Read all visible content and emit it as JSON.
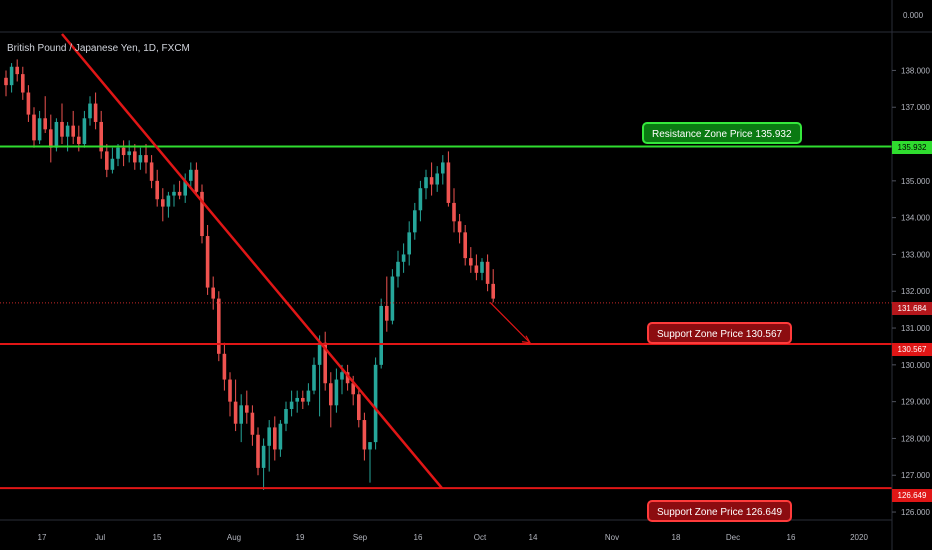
{
  "header": {
    "title": "British Pound / Japanese Yen, 1D, FXCM"
  },
  "price_axis": {
    "top_label": "0.000",
    "ticks": [
      "138.000",
      "137.000",
      "136.000",
      "135.000",
      "134.000",
      "133.000",
      "132.000",
      "131.000",
      "130.000",
      "129.000",
      "128.000",
      "127.000",
      "126.000"
    ]
  },
  "time_axis": {
    "ticks": [
      "17",
      "Jul",
      "15",
      "Aug",
      "19",
      "Sep",
      "16",
      "Oct",
      "14",
      "Nov",
      "18",
      "Dec",
      "16",
      "2020"
    ]
  },
  "levels": {
    "resistance": {
      "price": 135.932,
      "label": "Resistance Zone Price 135.932",
      "tag": "135.932",
      "color": "#2fdc2f"
    },
    "support1": {
      "price": 130.567,
      "label": "Support Zone Price 130.567",
      "tag": "130.567",
      "color": "#e01616"
    },
    "support2": {
      "price": 126.649,
      "label": "Support Zone Price 126.649",
      "tag": "126.649",
      "color": "#e01616"
    },
    "current": {
      "price": 131.684,
      "tag": "131.684"
    }
  },
  "colors": {
    "up": "#26a69a",
    "down": "#ef5350",
    "trendline": "#e01616",
    "background": "#000000"
  },
  "chart_data": {
    "type": "candlestick",
    "symbol": "GBPJPY",
    "ylim": [
      126,
      138.5
    ],
    "candles": [
      [
        137.8,
        138.0,
        137.3,
        137.6
      ],
      [
        137.6,
        138.2,
        137.4,
        138.1
      ],
      [
        138.1,
        138.3,
        137.7,
        137.9
      ],
      [
        137.9,
        138.1,
        137.2,
        137.4
      ],
      [
        137.4,
        137.6,
        136.6,
        136.8
      ],
      [
        136.8,
        137.0,
        135.9,
        136.1
      ],
      [
        136.1,
        136.9,
        136.0,
        136.7
      ],
      [
        136.7,
        137.3,
        136.3,
        136.4
      ],
      [
        136.4,
        136.8,
        135.5,
        135.9
      ],
      [
        135.9,
        136.7,
        135.8,
        136.6
      ],
      [
        136.6,
        137.1,
        136.0,
        136.2
      ],
      [
        136.2,
        136.6,
        135.8,
        136.5
      ],
      [
        136.5,
        136.9,
        136.0,
        136.2
      ],
      [
        136.2,
        136.5,
        135.8,
        136.0
      ],
      [
        136.0,
        136.9,
        135.9,
        136.7
      ],
      [
        136.7,
        137.3,
        136.5,
        137.1
      ],
      [
        137.1,
        137.4,
        136.4,
        136.6
      ],
      [
        136.6,
        136.9,
        135.6,
        135.8
      ],
      [
        135.8,
        136.0,
        135.1,
        135.3
      ],
      [
        135.3,
        135.9,
        135.2,
        135.6
      ],
      [
        135.6,
        136.0,
        135.4,
        135.9
      ],
      [
        135.9,
        136.1,
        135.4,
        135.7
      ],
      [
        135.7,
        136.1,
        135.5,
        135.8
      ],
      [
        135.8,
        136.0,
        135.3,
        135.5
      ],
      [
        135.5,
        135.9,
        135.3,
        135.7
      ],
      [
        135.7,
        136.0,
        135.2,
        135.5
      ],
      [
        135.5,
        135.7,
        134.8,
        135.0
      ],
      [
        135.0,
        135.3,
        134.3,
        134.5
      ],
      [
        134.5,
        134.8,
        133.9,
        134.3
      ],
      [
        134.3,
        134.7,
        134.0,
        134.6
      ],
      [
        134.6,
        134.9,
        134.3,
        134.7
      ],
      [
        134.7,
        135.0,
        134.5,
        134.6
      ],
      [
        134.6,
        135.2,
        134.4,
        135.0
      ],
      [
        135.0,
        135.5,
        134.8,
        135.3
      ],
      [
        135.3,
        135.5,
        134.6,
        134.7
      ],
      [
        134.7,
        134.9,
        133.3,
        133.5
      ],
      [
        133.5,
        133.8,
        131.9,
        132.1
      ],
      [
        132.1,
        132.4,
        131.5,
        131.8
      ],
      [
        131.8,
        132.0,
        130.1,
        130.3
      ],
      [
        130.3,
        130.6,
        129.3,
        129.6
      ],
      [
        129.6,
        129.8,
        128.6,
        129.0
      ],
      [
        129.0,
        129.6,
        128.2,
        128.4
      ],
      [
        128.4,
        129.2,
        127.9,
        128.9
      ],
      [
        128.9,
        129.3,
        128.4,
        128.7
      ],
      [
        128.7,
        128.9,
        127.8,
        128.1
      ],
      [
        128.1,
        128.3,
        127.0,
        127.2
      ],
      [
        127.2,
        128.0,
        126.6,
        127.8
      ],
      [
        127.8,
        128.5,
        127.1,
        128.3
      ],
      [
        128.3,
        128.6,
        127.4,
        127.7
      ],
      [
        127.7,
        128.5,
        127.5,
        128.4
      ],
      [
        128.4,
        129.0,
        128.2,
        128.8
      ],
      [
        128.8,
        129.3,
        128.6,
        129.0
      ],
      [
        129.0,
        129.3,
        128.7,
        129.1
      ],
      [
        129.1,
        129.3,
        128.8,
        129.0
      ],
      [
        129.0,
        129.5,
        128.9,
        129.3
      ],
      [
        129.3,
        130.2,
        129.2,
        130.0
      ],
      [
        130.0,
        130.8,
        128.6,
        130.6
      ],
      [
        130.6,
        130.9,
        129.3,
        129.5
      ],
      [
        129.5,
        129.8,
        128.3,
        128.9
      ],
      [
        128.9,
        129.9,
        128.7,
        129.6
      ],
      [
        129.6,
        130.0,
        129.2,
        129.8
      ],
      [
        129.8,
        130.0,
        129.3,
        129.5
      ],
      [
        129.5,
        129.7,
        128.9,
        129.2
      ],
      [
        129.2,
        129.4,
        128.3,
        128.5
      ],
      [
        128.5,
        128.7,
        127.4,
        127.7
      ],
      [
        127.7,
        127.9,
        126.8,
        127.9
      ],
      [
        127.9,
        130.2,
        127.7,
        130.0
      ],
      [
        130.0,
        131.8,
        129.9,
        131.6
      ],
      [
        131.6,
        132.4,
        130.9,
        131.2
      ],
      [
        131.2,
        132.6,
        131.1,
        132.4
      ],
      [
        132.4,
        133.1,
        132.1,
        132.8
      ],
      [
        132.8,
        133.3,
        132.5,
        133.0
      ],
      [
        133.0,
        133.9,
        132.7,
        133.6
      ],
      [
        133.6,
        134.4,
        133.4,
        134.2
      ],
      [
        134.2,
        135.0,
        133.9,
        134.8
      ],
      [
        134.8,
        135.3,
        134.5,
        135.1
      ],
      [
        135.1,
        135.5,
        134.6,
        134.9
      ],
      [
        134.9,
        135.4,
        134.7,
        135.2
      ],
      [
        135.2,
        135.7,
        134.9,
        135.5
      ],
      [
        135.5,
        135.8,
        134.3,
        134.4
      ],
      [
        134.4,
        134.8,
        133.6,
        133.9
      ],
      [
        133.9,
        134.1,
        133.3,
        133.6
      ],
      [
        133.6,
        133.8,
        132.7,
        132.9
      ],
      [
        132.9,
        133.2,
        132.5,
        132.7
      ],
      [
        132.7,
        133.0,
        132.3,
        132.5
      ],
      [
        132.5,
        132.9,
        132.3,
        132.8
      ],
      [
        132.8,
        133.0,
        132.0,
        132.2
      ],
      [
        132.2,
        132.6,
        131.7,
        131.8
      ]
    ],
    "annotations": [
      {
        "type": "trendline",
        "from": "start",
        "to": "support2"
      },
      {
        "type": "arrow",
        "direction": "down",
        "target": 130.567
      }
    ]
  }
}
